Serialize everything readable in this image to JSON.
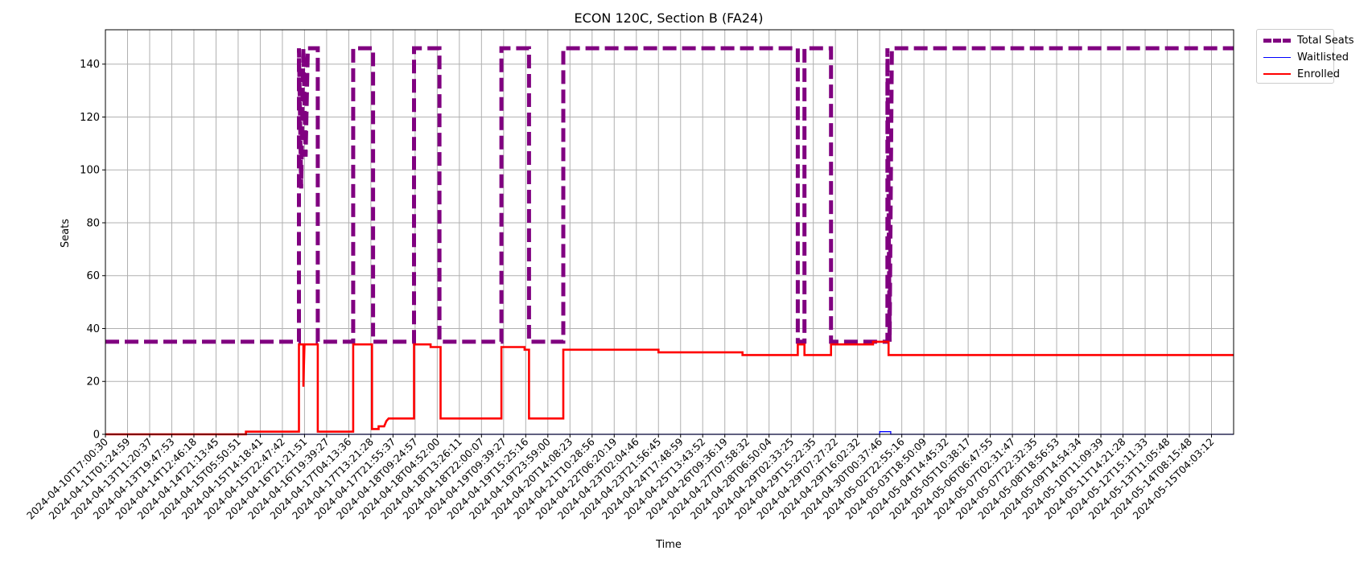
{
  "chart_data": {
    "type": "line",
    "title": "ECON 120C, Section B (FA24)",
    "xlabel": "Time",
    "ylabel": "Seats",
    "ylim": [
      0,
      153
    ],
    "yticks": [
      0,
      20,
      40,
      60,
      80,
      100,
      120,
      140
    ],
    "grid": true,
    "legend_position": "outside-top-right",
    "x_categories": [
      "2024-04-10T17:00:30",
      "2024-04-11T01:24:59",
      "2024-04-13T11:20:37",
      "2024-04-13T19:47:53",
      "2024-04-14T12:46:18",
      "2024-04-14T21:13:45",
      "2024-04-15T05:50:51",
      "2024-04-15T14:18:41",
      "2024-04-15T22:47:42",
      "2024-04-16T21:21:51",
      "2024-04-16T19:39:27",
      "2024-04-17T04:13:36",
      "2024-04-17T13:21:28",
      "2024-04-17T21:55:37",
      "2024-04-18T09:24:57",
      "2024-04-18T04:52:00",
      "2024-04-18T13:26:11",
      "2024-04-18T22:00:07",
      "2024-04-19T09:39:27",
      "2024-04-19T15:25:16",
      "2024-04-19T23:59:00",
      "2024-04-20T14:08:23",
      "2024-04-21T10:28:56",
      "2024-04-22T06:20:19",
      "2024-04-23T02:04:46",
      "2024-04-23T21:56:45",
      "2024-04-24T17:48:59",
      "2024-04-25T13:43:52",
      "2024-04-26T09:36:19",
      "2024-04-27T07:58:32",
      "2024-04-28T06:50:04",
      "2024-04-29T02:33:25",
      "2024-04-29T15:22:35",
      "2024-04-29T07:27:22",
      "2024-04-29T16:02:32",
      "2024-04-30T00:37:46",
      "2024-05-02T22:55:16",
      "2024-05-03T18:50:09",
      "2024-05-04T14:45:32",
      "2024-05-05T10:38:17",
      "2024-05-06T06:47:55",
      "2024-05-07T02:31:47",
      "2024-05-07T22:32:35",
      "2024-05-08T18:56:53",
      "2024-05-09T14:54:34",
      "2024-05-10T11:09:39",
      "2024-05-11T14:21:28",
      "2024-05-12T15:11:33",
      "2024-05-13T11:05:48",
      "2024-05-14T08:15:48",
      "2024-05-15T04:03:12"
    ],
    "x_index_range": [
      0,
      51
    ],
    "series": [
      {
        "name": "Total Seats",
        "color": "#800080",
        "style": "dashed",
        "points": [
          [
            0,
            35
          ],
          [
            8.75,
            35
          ],
          [
            8.75,
            146
          ],
          [
            8.85,
            93
          ],
          [
            8.95,
            146
          ],
          [
            9.05,
            105
          ],
          [
            9.15,
            146
          ],
          [
            9.6,
            146
          ],
          [
            9.6,
            35
          ],
          [
            11.2,
            35
          ],
          [
            11.2,
            146
          ],
          [
            12.1,
            146
          ],
          [
            12.1,
            35
          ],
          [
            13.95,
            35
          ],
          [
            13.95,
            146
          ],
          [
            15.1,
            146
          ],
          [
            15.1,
            35
          ],
          [
            17.9,
            35
          ],
          [
            17.9,
            146
          ],
          [
            19.15,
            146
          ],
          [
            19.15,
            35
          ],
          [
            20.7,
            35
          ],
          [
            20.7,
            146
          ],
          [
            31.3,
            146
          ],
          [
            31.3,
            35
          ],
          [
            31.6,
            35
          ],
          [
            31.6,
            146
          ],
          [
            32.8,
            146
          ],
          [
            32.8,
            35
          ],
          [
            35.35,
            35
          ],
          [
            35.35,
            146
          ],
          [
            35.45,
            35
          ],
          [
            35.55,
            146
          ],
          [
            51,
            146
          ]
        ]
      },
      {
        "name": "Waitlisted",
        "color": "#0000ff",
        "style": "solid",
        "points": [
          [
            0,
            0
          ],
          [
            35.0,
            0
          ],
          [
            35.0,
            1
          ],
          [
            35.5,
            1
          ],
          [
            35.5,
            0
          ],
          [
            51,
            0
          ]
        ]
      },
      {
        "name": "Enrolled",
        "color": "#ff0000",
        "style": "solid",
        "points": [
          [
            0,
            0
          ],
          [
            6.35,
            0
          ],
          [
            6.35,
            1
          ],
          [
            8.75,
            1
          ],
          [
            8.75,
            34
          ],
          [
            8.95,
            34
          ],
          [
            8.95,
            18
          ],
          [
            9.0,
            34
          ],
          [
            9.6,
            34
          ],
          [
            9.6,
            1
          ],
          [
            11.2,
            1
          ],
          [
            11.2,
            34
          ],
          [
            12.05,
            34
          ],
          [
            12.05,
            2
          ],
          [
            12.35,
            2
          ],
          [
            12.35,
            3
          ],
          [
            12.6,
            3
          ],
          [
            12.7,
            5
          ],
          [
            12.8,
            6
          ],
          [
            13.95,
            6
          ],
          [
            13.95,
            34
          ],
          [
            14.7,
            34
          ],
          [
            14.7,
            33
          ],
          [
            15.15,
            33
          ],
          [
            15.15,
            6
          ],
          [
            17.9,
            6
          ],
          [
            17.9,
            33
          ],
          [
            18.95,
            33
          ],
          [
            18.95,
            32
          ],
          [
            19.15,
            32
          ],
          [
            19.15,
            6
          ],
          [
            20.7,
            6
          ],
          [
            20.7,
            32
          ],
          [
            25.0,
            32
          ],
          [
            25.0,
            31
          ],
          [
            28.8,
            31
          ],
          [
            28.8,
            30
          ],
          [
            31.3,
            30
          ],
          [
            31.3,
            34
          ],
          [
            31.6,
            34
          ],
          [
            31.6,
            30
          ],
          [
            32.8,
            30
          ],
          [
            32.8,
            34
          ],
          [
            34.7,
            34
          ],
          [
            34.7,
            35
          ],
          [
            35.4,
            35
          ],
          [
            35.4,
            30
          ],
          [
            51,
            30
          ]
        ]
      }
    ]
  }
}
